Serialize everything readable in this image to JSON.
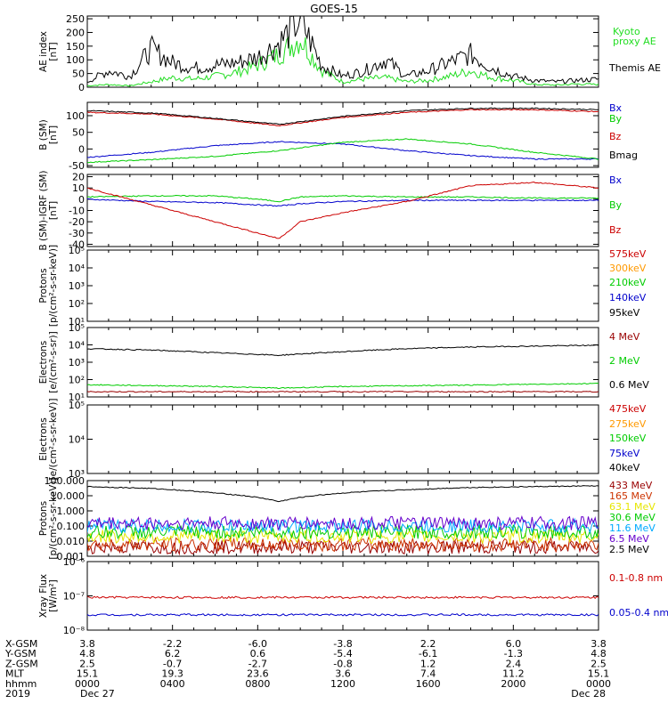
{
  "title": "GOES-15",
  "colors": {
    "black": "#000000",
    "red": "#cc0000",
    "darkred": "#990000",
    "green": "#00dd00",
    "blue": "#0000cc",
    "orange": "#ff9900",
    "yellow": "#e6e600",
    "cyan": "#00aaff",
    "purple": "#6600cc",
    "brown": "#993300",
    "lime": "#33cc33"
  },
  "chart_data": [
    {
      "type": "line",
      "id": "ae",
      "ylabel": "AE index [nT]",
      "ylim": [
        0,
        260
      ],
      "yticks": [
        "250",
        "200",
        "150",
        "100",
        "50",
        "0"
      ],
      "ytick_values": [
        250,
        200,
        150,
        100,
        50,
        0
      ],
      "series": [
        {
          "name": "Kyoto proxy AE",
          "color": "#22dd22",
          "x": [
            0,
            1,
            2,
            3,
            4,
            5,
            6,
            7,
            8,
            9,
            10,
            11,
            12,
            13,
            14,
            15,
            16,
            17,
            18,
            19,
            20,
            21,
            22,
            23,
            24
          ],
          "values": [
            5,
            10,
            5,
            20,
            35,
            30,
            40,
            55,
            80,
            120,
            180,
            60,
            20,
            30,
            35,
            20,
            25,
            40,
            60,
            35,
            25,
            10,
            8,
            12,
            10
          ]
        },
        {
          "name": "Themis AE",
          "color": "#000000",
          "x": [
            0,
            1,
            2,
            3,
            4,
            5,
            6,
            7,
            8,
            9,
            10,
            11,
            12,
            13,
            14,
            15,
            16,
            17,
            18,
            19,
            20,
            21,
            22,
            23,
            24
          ],
          "values": [
            20,
            60,
            40,
            140,
            90,
            70,
            80,
            90,
            110,
            160,
            250,
            80,
            40,
            60,
            100,
            40,
            60,
            90,
            120,
            70,
            40,
            25,
            20,
            25,
            30
          ]
        }
      ],
      "legend": [
        "Kyoto",
        "proxy AE",
        "Themis AE"
      ]
    },
    {
      "type": "line",
      "id": "bsm",
      "ylabel": "B (SM) [nT]",
      "ylim": [
        -55,
        140
      ],
      "yticks": [
        "100",
        "50",
        "0",
        "-50"
      ],
      "ytick_values": [
        100,
        50,
        0,
        -50
      ],
      "series": [
        {
          "name": "Bx",
          "color": "#0000cc",
          "x": [
            0,
            3,
            6,
            9,
            12,
            15,
            18,
            21,
            24
          ],
          "values": [
            -25,
            -10,
            10,
            22,
            15,
            -5,
            -20,
            -30,
            -30
          ]
        },
        {
          "name": "By",
          "color": "#00cc00",
          "x": [
            0,
            3,
            6,
            9,
            12,
            15,
            18,
            21,
            24
          ],
          "values": [
            -40,
            -32,
            -22,
            -5,
            20,
            30,
            15,
            -10,
            -30
          ]
        },
        {
          "name": "Bz",
          "color": "#cc0000",
          "x": [
            0,
            3,
            6,
            9,
            12,
            15,
            18,
            21,
            24
          ],
          "values": [
            110,
            105,
            90,
            70,
            95,
            110,
            118,
            118,
            112
          ]
        },
        {
          "name": "Bmag",
          "color": "#000000",
          "x": [
            0,
            3,
            6,
            9,
            12,
            15,
            18,
            21,
            24
          ],
          "values": [
            115,
            108,
            92,
            74,
            98,
            115,
            122,
            122,
            118
          ]
        }
      ]
    },
    {
      "type": "line",
      "id": "bigrf",
      "ylabel": "B (SM)-IGRF (SM) [nT]",
      "ylim": [
        -42,
        22
      ],
      "yticks": [
        "20",
        "10",
        "0",
        "-10",
        "-20",
        "-30",
        "-40"
      ],
      "ytick_values": [
        20,
        10,
        0,
        -10,
        -20,
        -30,
        -40
      ],
      "series": [
        {
          "name": "Bx",
          "color": "#0000cc",
          "x": [
            0,
            3,
            6,
            8,
            9,
            10,
            12,
            15,
            18,
            21,
            24
          ],
          "values": [
            0,
            -2,
            -3,
            -5,
            -6,
            -4,
            -2,
            -1,
            -1,
            -1,
            -1
          ]
        },
        {
          "name": "By",
          "color": "#00cc00",
          "x": [
            0,
            3,
            6,
            8,
            9,
            10,
            12,
            15,
            18,
            21,
            24
          ],
          "values": [
            2,
            3,
            3,
            0,
            -2,
            2,
            3,
            2,
            2,
            1,
            1
          ]
        },
        {
          "name": "Bz",
          "color": "#cc0000",
          "x": [
            0,
            1,
            3,
            6,
            8,
            9,
            10,
            12,
            15,
            18,
            21,
            24
          ],
          "values": [
            10,
            5,
            -5,
            -20,
            -30,
            -35,
            -20,
            -12,
            -2,
            12,
            15,
            10
          ]
        }
      ]
    },
    {
      "type": "line",
      "id": "protons_low",
      "ylabel": "Protons [p/(cm²-s-sr-keV)]",
      "log": true,
      "ylim": [
        1,
        100000
      ],
      "yticks": [
        "10⁵",
        "10⁴",
        "10³",
        "10²",
        "10¹"
      ],
      "series": [
        {
          "name": "575keV",
          "color": "#cc0000"
        },
        {
          "name": "300keV",
          "color": "#ff9900"
        },
        {
          "name": "210keV",
          "color": "#00cc00"
        },
        {
          "name": "140keV",
          "color": "#0000cc"
        },
        {
          "name": "95keV",
          "color": "#000000"
        }
      ]
    },
    {
      "type": "line",
      "id": "electrons_mev",
      "ylabel": "Electrons [e/(cm²-s-sr)]",
      "log": true,
      "ylim": [
        10,
        100000
      ],
      "yticks": [
        "10⁵",
        "10⁴",
        "10³",
        "10²",
        "10¹"
      ],
      "series": [
        {
          "name": "4 MeV",
          "color": "#990000",
          "x": [
            0,
            24
          ],
          "values": [
            20,
            20
          ]
        },
        {
          "name": "2 MeV",
          "color": "#00cc00",
          "x": [
            0,
            6,
            9,
            12,
            18,
            24
          ],
          "values": [
            50,
            40,
            32,
            40,
            48,
            60
          ]
        },
        {
          "name": "0.6 MeV",
          "color": "#000000",
          "x": [
            0,
            3,
            6,
            9,
            12,
            15,
            18,
            21,
            24
          ],
          "values": [
            6000,
            5000,
            3500,
            2500,
            4000,
            6000,
            7500,
            8500,
            9500
          ]
        }
      ]
    },
    {
      "type": "line",
      "id": "electrons_kev",
      "ylabel": "Electrons [e/(cm²-s-sr-keV)]",
      "log": true,
      "ylim": [
        1000,
        100000
      ],
      "yticks": [
        "10⁵",
        "10⁴",
        "10³"
      ],
      "series": [
        {
          "name": "475keV",
          "color": "#cc0000"
        },
        {
          "name": "275keV",
          "color": "#ff9900"
        },
        {
          "name": "150keV",
          "color": "#00cc00"
        },
        {
          "name": "75keV",
          "color": "#0000cc"
        },
        {
          "name": "40keV",
          "color": "#000000"
        }
      ]
    },
    {
      "type": "line",
      "id": "protons_mev",
      "ylabel": "Protons [p/(cm²-s-sr-keV)]",
      "log": true,
      "ylim": [
        0.001,
        100
      ],
      "yticks": [
        "100.000",
        "10.000",
        "1.000",
        "0.100",
        "0.010",
        "0.001"
      ],
      "series": [
        {
          "name": "433 MeV",
          "color": "#990000",
          "x": [
            0,
            24
          ],
          "values": [
            0.004,
            0.004
          ]
        },
        {
          "name": "165 MeV",
          "color": "#cc3300",
          "x": [
            0,
            24
          ],
          "values": [
            0.006,
            0.006
          ]
        },
        {
          "name": "63.1 MeV",
          "color": "#e6e600",
          "x": [
            0,
            24
          ],
          "values": [
            0.02,
            0.02
          ]
        },
        {
          "name": "30.6 MeV",
          "color": "#00cc00",
          "x": [
            0,
            24
          ],
          "values": [
            0.04,
            0.04
          ]
        },
        {
          "name": "11.6 MeV",
          "color": "#00aaff",
          "x": [
            0,
            24
          ],
          "values": [
            0.1,
            0.1
          ]
        },
        {
          "name": "6.5 MeV",
          "color": "#6600cc",
          "x": [
            0,
            24
          ],
          "values": [
            0.15,
            0.15
          ]
        },
        {
          "name": "2.5 MeV",
          "color": "#000000",
          "x": [
            0,
            3,
            6,
            9,
            12,
            15,
            18,
            21,
            24
          ],
          "values": [
            40,
            30,
            15,
            4,
            15,
            25,
            35,
            40,
            45
          ]
        }
      ]
    },
    {
      "type": "line",
      "id": "xray",
      "ylabel": "Xray Flux [W/m²]",
      "log": true,
      "ylim": [
        1e-08,
        1e-06
      ],
      "yticks": [
        "10⁻⁶",
        "10⁻⁷",
        "10⁻⁸"
      ],
      "series": [
        {
          "name": "0.1-0.8 nm",
          "color": "#cc0000",
          "x": [
            0,
            24
          ],
          "values": [
            9e-08,
            9e-08
          ]
        },
        {
          "name": "0.05-0.4 nm",
          "color": "#0000cc",
          "x": [
            0,
            24
          ],
          "values": [
            2.8e-08,
            2.8e-08
          ]
        }
      ]
    }
  ],
  "bottom_table": {
    "rows": [
      {
        "label": "X-GSM",
        "values": [
          "3.8",
          "-2.2",
          "-6.0",
          "-3.8",
          "2.2",
          "6.0",
          "3.8"
        ]
      },
      {
        "label": "Y-GSM",
        "values": [
          "4.8",
          "6.2",
          "0.6",
          "-5.4",
          "-6.1",
          "-1.3",
          "4.8"
        ]
      },
      {
        "label": "Z-GSM",
        "values": [
          "2.5",
          "-0.7",
          "-2.7",
          "-0.8",
          "1.2",
          "2.4",
          "2.5"
        ]
      },
      {
        "label": "MLT",
        "values": [
          "15.1",
          "19.3",
          "23.6",
          "3.6",
          "7.4",
          "11.2",
          "15.1"
        ]
      },
      {
        "label": "hhmm",
        "values": [
          "0000",
          "0400",
          "0800",
          "1200",
          "1600",
          "2000",
          "0000"
        ]
      },
      {
        "label": "2019",
        "values": [
          "Dec 27",
          "",
          "",
          "",
          "",
          "",
          "Dec 28"
        ]
      }
    ]
  }
}
